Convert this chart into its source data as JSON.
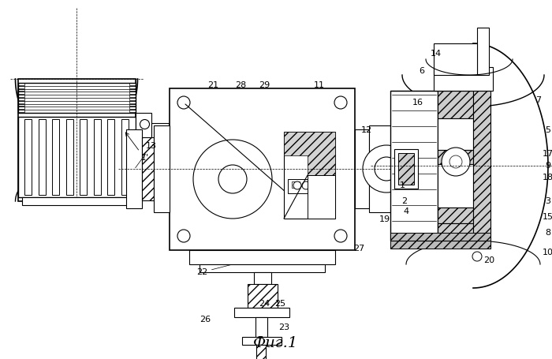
{
  "caption": "Фиг.1",
  "bg_color": "#ffffff",
  "fig_width": 7.0,
  "fig_height": 4.55,
  "dpi": 100
}
